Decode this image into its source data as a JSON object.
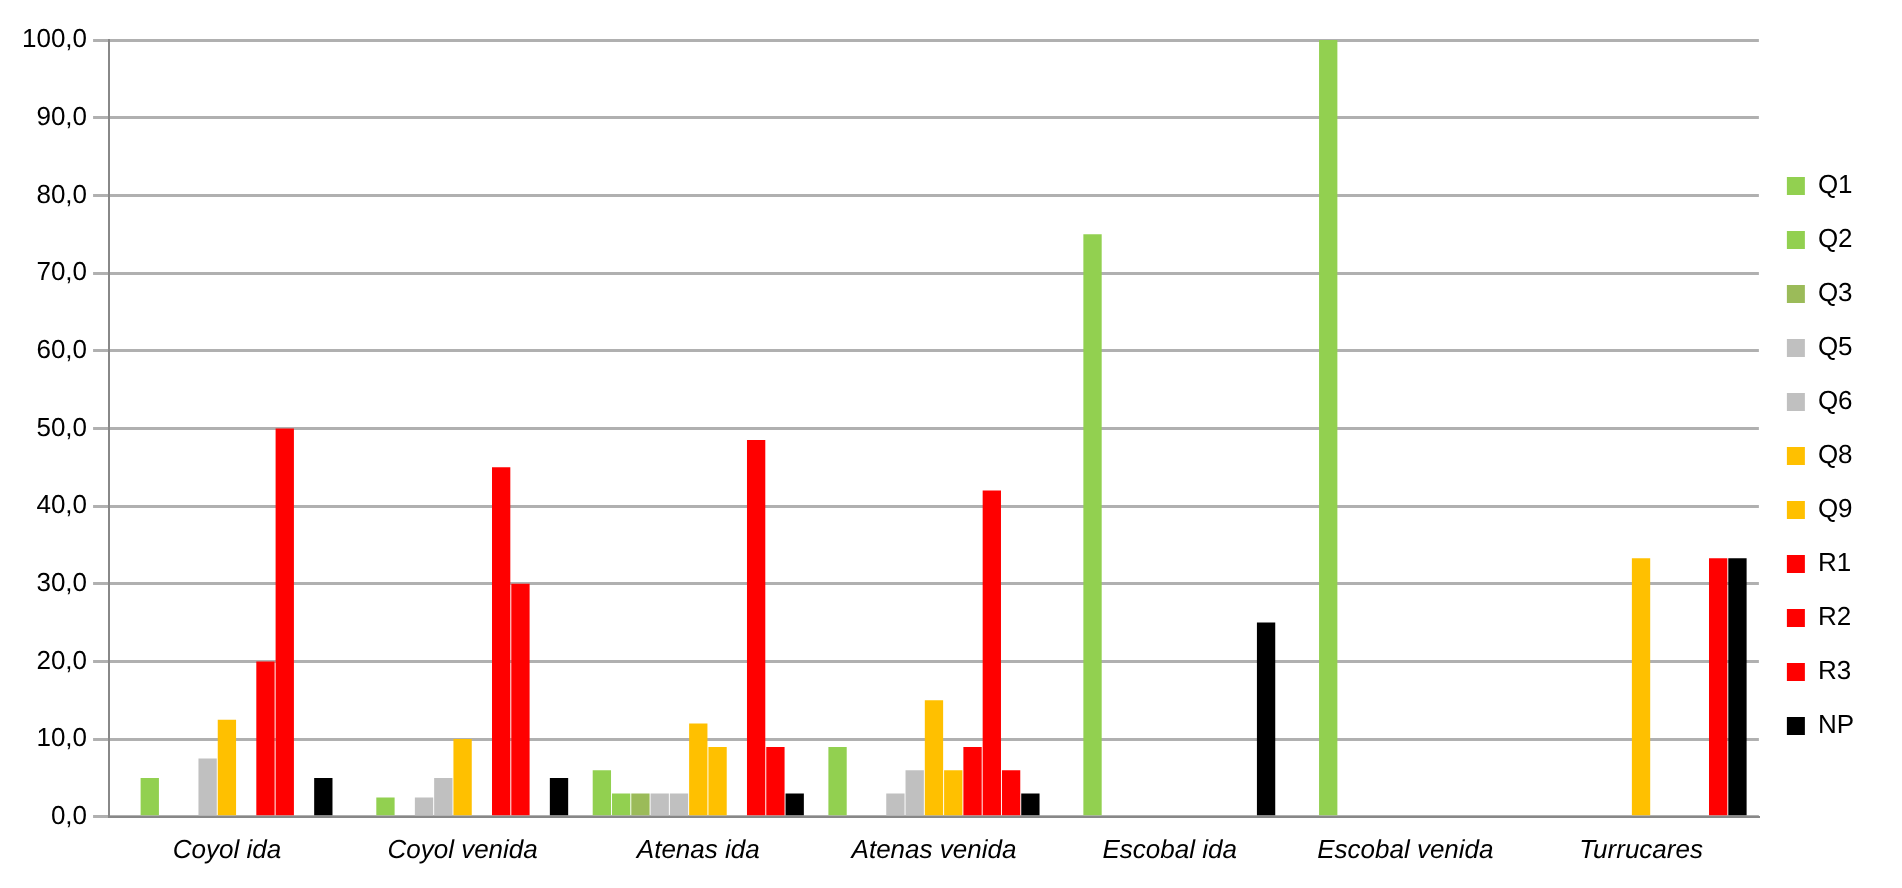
{
  "chart_data": {
    "type": "bar",
    "categories": [
      "Coyol ida",
      "Coyol venida",
      "Atenas ida",
      "Atenas venida",
      "Escobal ida",
      "Escobal venida",
      "Turrucares"
    ],
    "series": [
      {
        "name": "Q1",
        "color": "#92d050",
        "values": [
          0,
          0,
          6,
          9,
          0,
          0,
          0
        ]
      },
      {
        "name": "Q2",
        "color": "#92d050",
        "values": [
          5,
          2.5,
          3,
          0,
          75,
          100,
          0
        ]
      },
      {
        "name": "Q3",
        "color": "#9bbb59",
        "values": [
          0,
          0,
          3,
          0,
          0,
          0,
          0
        ]
      },
      {
        "name": "Q5",
        "color": "#c0c0c0",
        "values": [
          0,
          2.5,
          3,
          3,
          0,
          0,
          0
        ]
      },
      {
        "name": "Q6",
        "color": "#c0c0c0",
        "values": [
          7.5,
          5,
          3,
          6,
          0,
          0,
          0
        ]
      },
      {
        "name": "Q8",
        "color": "#ffc000",
        "values": [
          12.5,
          10,
          12,
          15,
          0,
          0,
          33.3
        ]
      },
      {
        "name": "Q9",
        "color": "#ffc000",
        "values": [
          0,
          0,
          9,
          6,
          0,
          0,
          0
        ]
      },
      {
        "name": "R1",
        "color": "#ff0000",
        "values": [
          20,
          45,
          0,
          9,
          0,
          0,
          0
        ]
      },
      {
        "name": "R2",
        "color": "#ff0000",
        "values": [
          50,
          30,
          48.5,
          42,
          0,
          0,
          0
        ]
      },
      {
        "name": "R3",
        "color": "#ff0000",
        "values": [
          0,
          0,
          9,
          6,
          0,
          0,
          33.3
        ]
      },
      {
        "name": "NP",
        "color": "#000000",
        "values": [
          5,
          5,
          3,
          3,
          25,
          0,
          33.3
        ]
      }
    ],
    "ylim": [
      0,
      100
    ],
    "yticks": [
      {
        "value": 0,
        "label": "0,0"
      },
      {
        "value": 10,
        "label": "10,0"
      },
      {
        "value": 20,
        "label": "20,0"
      },
      {
        "value": 30,
        "label": "30,0"
      },
      {
        "value": 40,
        "label": "40,0"
      },
      {
        "value": 50,
        "label": "50,0"
      },
      {
        "value": 60,
        "label": "60,0"
      },
      {
        "value": 70,
        "label": "70,0"
      },
      {
        "value": 80,
        "label": "80,0"
      },
      {
        "value": 90,
        "label": "90,0"
      },
      {
        "value": 100,
        "label": "100,0"
      }
    ],
    "grid": "y",
    "legend": "right"
  }
}
